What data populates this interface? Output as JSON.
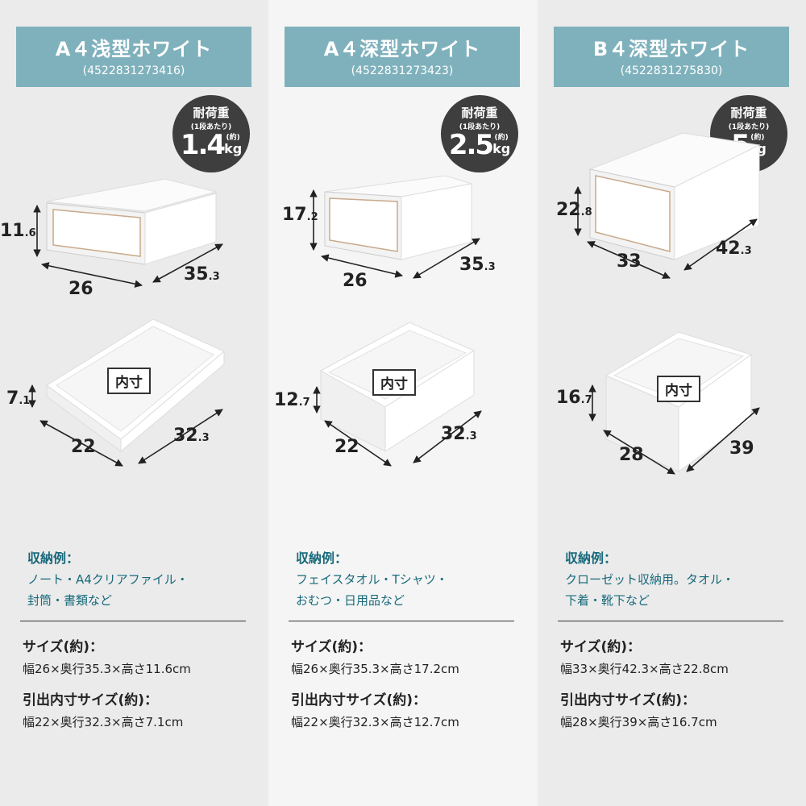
{
  "badge": {
    "line1": "耐荷重",
    "line2": "(1段あたり)",
    "approx": "(約)",
    "unit": "kg"
  },
  "inner_label": "内寸",
  "example_heading": "収納例：",
  "size_heading": "サイズ(約)：",
  "drawer_size_heading": "引出内寸サイズ(約)：",
  "colors": {
    "header": "#7fb1bc",
    "example_text": "#17697b",
    "badge": "#3e3e3e"
  },
  "products": [
    {
      "title": "A４浅型ホワイト",
      "code": "(4522831273416)",
      "load": "1.4",
      "outer": {
        "h": "11",
        "h_sub": ".6",
        "w": "26",
        "w_sub": "",
        "d": "35",
        "d_sub": ".3"
      },
      "inner": {
        "h": "7",
        "h_sub": ".1",
        "w": "22",
        "w_sub": "",
        "d": "32",
        "d_sub": ".3"
      },
      "examples": [
        "ノート・A4クリアファイル・",
        "封筒・書類など"
      ],
      "size": "幅26×奥行35.3×高さ11.6cm",
      "drawer_size": "幅22×奥行32.3×高さ7.1cm"
    },
    {
      "title": "A４深型ホワイト",
      "code": "(4522831273423)",
      "load": "2.5",
      "outer": {
        "h": "17",
        "h_sub": ".2",
        "w": "26",
        "w_sub": "",
        "d": "35",
        "d_sub": ".3"
      },
      "inner": {
        "h": "12",
        "h_sub": ".7",
        "w": "22",
        "w_sub": "",
        "d": "32",
        "d_sub": ".3"
      },
      "examples": [
        "フェイスタオル・Tシャツ・",
        "おむつ・日用品など"
      ],
      "size": "幅26×奥行35.3×高さ17.2cm",
      "drawer_size": "幅22×奥行32.3×高さ12.7cm"
    },
    {
      "title": "B４深型ホワイト",
      "code": "(4522831275830)",
      "load": "5",
      "outer": {
        "h": "22",
        "h_sub": ".8",
        "w": "33",
        "w_sub": "",
        "d": "42",
        "d_sub": ".3"
      },
      "inner": {
        "h": "16",
        "h_sub": ".7",
        "w": "28",
        "w_sub": "",
        "d": "39",
        "d_sub": ""
      },
      "examples": [
        "クローゼット収納用。タオル・",
        "下着・靴下など"
      ],
      "size": "幅33×奥行42.3×高さ22.8cm",
      "drawer_size": "幅28×奥行39×高さ16.7cm"
    }
  ]
}
